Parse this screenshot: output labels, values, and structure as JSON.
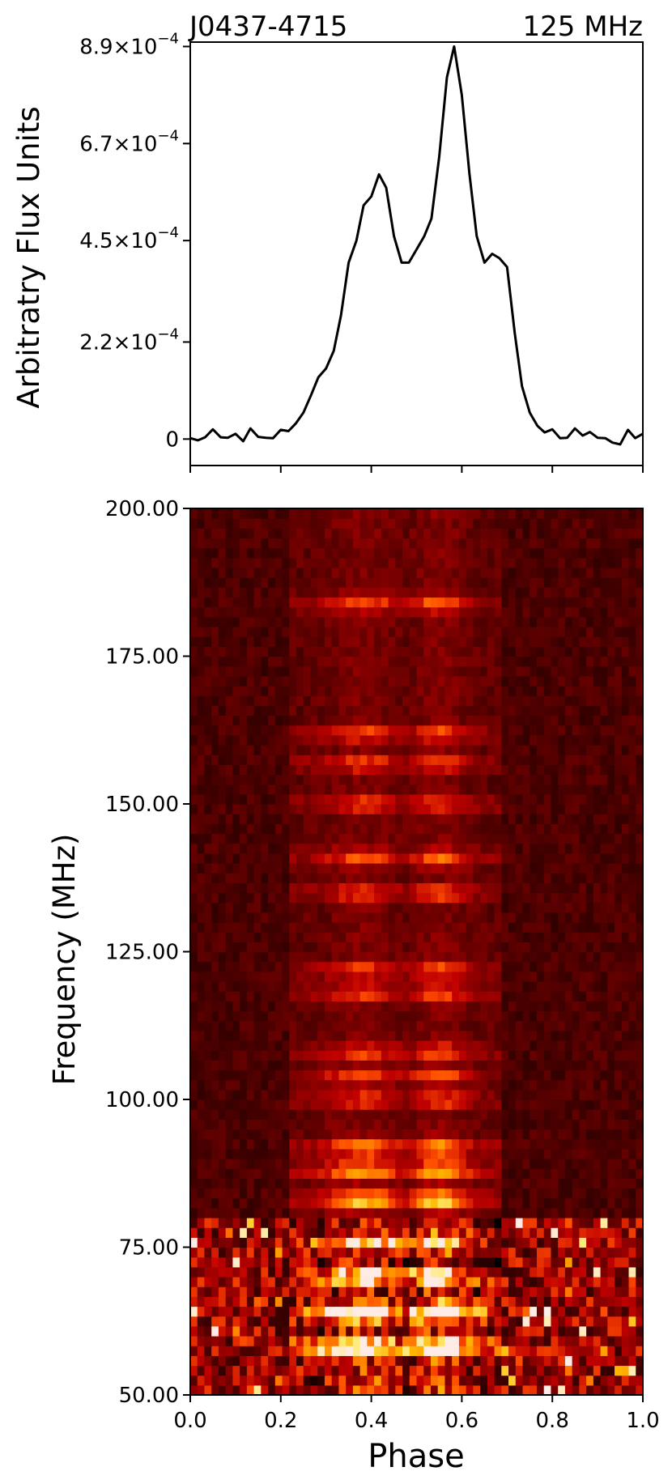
{
  "chart_data": [
    {
      "type": "line",
      "title_left": "J0437-4715",
      "title_right": "125 MHz",
      "xlabel": "",
      "ylabel": "Arbitratry Flux Units",
      "xlim": [
        0.0,
        1.0
      ],
      "ylim": [
        -6e-05,
        0.0009
      ],
      "ytick_values": [
        0,
        0.00022,
        0.00045,
        0.00067,
        0.00089
      ],
      "ytick_labels": [
        {
          "base": "0",
          "exp": ""
        },
        {
          "base": "2.2×10",
          "exp": "−4"
        },
        {
          "base": "4.5×10",
          "exp": "−4"
        },
        {
          "base": "6.7×10",
          "exp": "−4"
        },
        {
          "base": "8.9×10",
          "exp": "−4"
        }
      ],
      "xtick_values": [
        0.0,
        0.2,
        0.4,
        0.6,
        0.8,
        1.0
      ],
      "grid": false,
      "line_color": "#000000",
      "series": [
        {
          "x": [
            0.0,
            0.017,
            0.033,
            0.05,
            0.067,
            0.083,
            0.1,
            0.117,
            0.133,
            0.15,
            0.167,
            0.183,
            0.2,
            0.217,
            0.233,
            0.25,
            0.267,
            0.283,
            0.3,
            0.317,
            0.333,
            0.35,
            0.367,
            0.383,
            0.4,
            0.417,
            0.433,
            0.45,
            0.467,
            0.483,
            0.5,
            0.517,
            0.533,
            0.55,
            0.567,
            0.583,
            0.6,
            0.617,
            0.633,
            0.65,
            0.667,
            0.683,
            0.7,
            0.717,
            0.733,
            0.75,
            0.767,
            0.783,
            0.8,
            0.817,
            0.833,
            0.85,
            0.867,
            0.883,
            0.9,
            0.917,
            0.933,
            0.95,
            0.967,
            0.983,
            1.0
          ],
          "y": [
            2e-06,
            -3e-06,
            4e-06,
            2.2e-05,
            4e-06,
            3e-06,
            1.2e-05,
            -5e-06,
            2.4e-05,
            5e-06,
            3e-06,
            2e-06,
            2.1e-05,
            1.8e-05,
            3.5e-05,
            6e-05,
            0.0001,
            0.00014,
            0.00016,
            0.0002,
            0.00028,
            0.0004,
            0.00045,
            0.00053,
            0.00055,
            0.0006,
            0.00057,
            0.00046,
            0.0004,
            0.0004,
            0.00043,
            0.00046,
            0.0005,
            0.00064,
            0.00082,
            0.00089,
            0.00078,
            0.0006,
            0.00046,
            0.0004,
            0.00042,
            0.00041,
            0.00039,
            0.00024,
            0.00012,
            6e-05,
            3e-05,
            1.5e-05,
            2.2e-05,
            2e-06,
            3e-06,
            2.4e-05,
            8e-06,
            1.6e-05,
            3e-06,
            2e-06,
            -8e-06,
            -1.2e-05,
            2.1e-05,
            2e-06,
            1.2e-05
          ]
        }
      ]
    },
    {
      "type": "heatmap",
      "xlabel": "Phase",
      "ylabel": "Frequency (MHz)",
      "xlim": [
        0.0,
        1.0
      ],
      "ylim": [
        50.0,
        200.0
      ],
      "xtick_labels": [
        "0.0",
        "0.2",
        "0.4",
        "0.6",
        "0.8",
        "1.0"
      ],
      "ytick_labels": [
        "50.00",
        "75.00",
        "100.00",
        "125.00",
        "150.00",
        "175.00",
        "200.00"
      ],
      "colormap": "gist_heat",
      "grid": false,
      "n_phase_bins": 64,
      "n_freq_channels": 90,
      "pulse_window": [
        0.22,
        0.69
      ],
      "description_values": {
        "bright_bands_mhz": [
          184,
          162,
          157,
          150,
          141,
          135,
          122,
          118,
          108,
          104,
          100,
          92,
          88,
          83,
          76,
          70,
          64,
          58
        ],
        "component_centers": [
          0.38,
          0.55
        ]
      }
    }
  ]
}
